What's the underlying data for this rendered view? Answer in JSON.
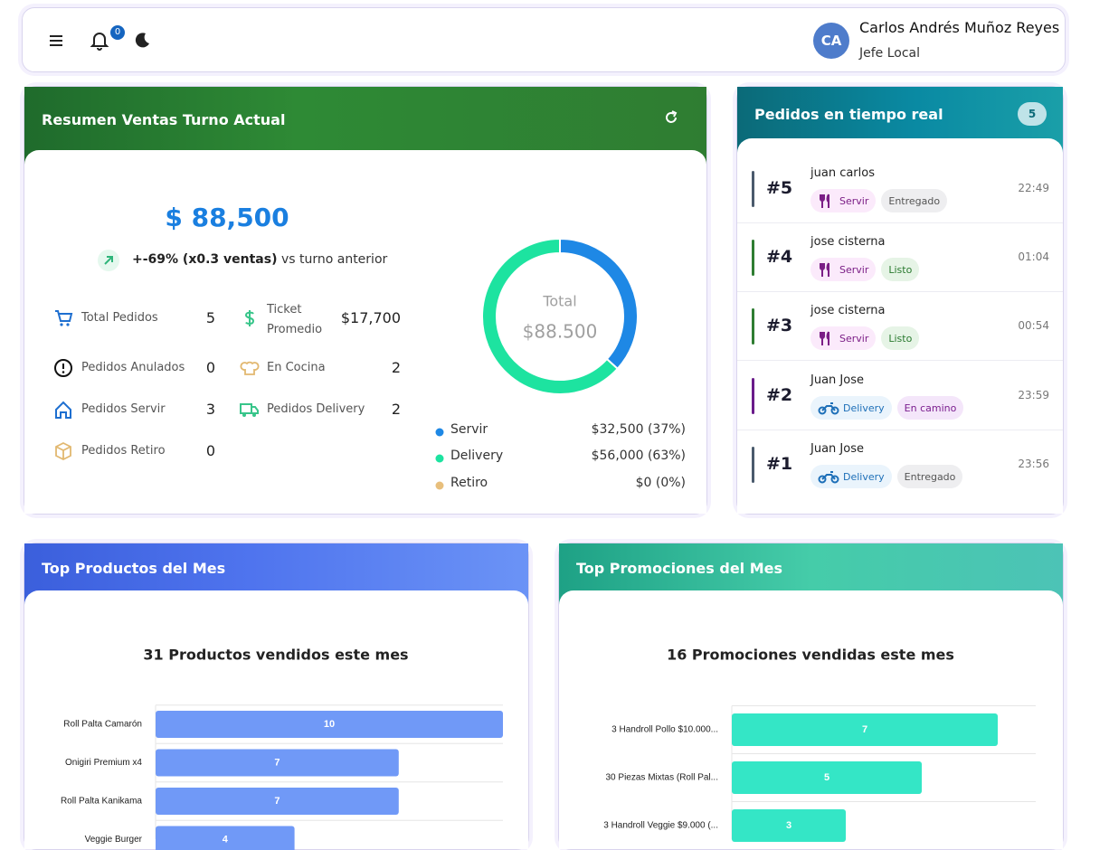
{
  "header": {
    "notifications": 0,
    "avatar_initials": "CA",
    "user_name": "Carlos Andrés Muñoz Reyes",
    "user_role": "Jefe Local"
  },
  "sales_summary": {
    "title": "Resumen Ventas Turno Actual",
    "total": "$ 88,500",
    "change": "+-69% (x0.3 ventas)",
    "change_suffix": "vs turno anterior",
    "stats": [
      {
        "label": "Total Pedidos",
        "value": 5
      },
      {
        "label": "Ticket Promedio",
        "value": "$17,700"
      },
      {
        "label": "Pedidos Anulados",
        "value": 0
      },
      {
        "label": "En Cocina",
        "value": 2
      },
      {
        "label": "Pedidos Servir",
        "value": 3
      },
      {
        "label": "Pedidos Delivery",
        "value": 2
      },
      {
        "label": "Pedidos Retiro",
        "value": 0
      }
    ]
  },
  "live_orders": {
    "title": "Pedidos en tiempo real",
    "count": 5,
    "orders": [
      {
        "number": "#5",
        "customer": "juan carlos",
        "type": "Servir",
        "status": "Entregado",
        "time": "22:49"
      },
      {
        "number": "#4",
        "customer": "jose cisterna",
        "type": "Servir",
        "status": "Listo",
        "time": "01:04"
      },
      {
        "number": "#3",
        "customer": "jose cisterna",
        "type": "Servir",
        "status": "Listo",
        "time": "00:54"
      },
      {
        "number": "#2",
        "customer": "Juan Jose",
        "type": "Delivery",
        "status": "En camino",
        "time": "23:59"
      },
      {
        "number": "#1",
        "customer": "Juan Jose",
        "type": "Delivery",
        "status": "Entregado",
        "time": "23:56"
      }
    ]
  },
  "top_products": {
    "title": "Top Productos del Mes"
  },
  "top_promotions": {
    "title": "Top Promociones del Mes"
  },
  "chart_data": [
    {
      "type": "donut",
      "center_label": "Total",
      "center_value": "$88.500",
      "categories": [
        "Servir",
        "Delivery",
        "Retiro"
      ],
      "values": [
        32500,
        56000,
        0
      ],
      "value_labels": [
        "$32,500 (37%)",
        "$56,000 (63%)",
        "$0 (0%)"
      ],
      "colors": [
        "#1e88e5",
        "#1de3a0",
        "#e8bf7c"
      ]
    },
    {
      "type": "hbar",
      "title": "31 Productos vendidos este mes",
      "categories": [
        "Roll Palta Camarón",
        "Onigiri Premium x4",
        "Roll Palta Kanikama",
        "Veggie Burger"
      ],
      "values": [
        10,
        7,
        7,
        4
      ],
      "color": "#7099f7",
      "xlim": [
        0,
        10
      ]
    },
    {
      "type": "hbar",
      "title": "16 Promociones vendidas este mes",
      "categories": [
        "3 Handroll Pollo $10.000...",
        "30 Piezas Mixtas (Roll Pal...",
        "3 Handroll Veggie $9.000 (..."
      ],
      "values": [
        7,
        5,
        3
      ],
      "color": "#34e6c6",
      "xlim": [
        0,
        8
      ]
    }
  ]
}
